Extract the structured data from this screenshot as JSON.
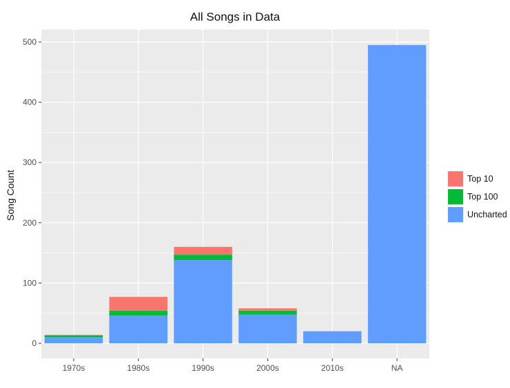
{
  "chart_data": {
    "type": "bar",
    "stacked": true,
    "title": "All Songs in Data",
    "xlabel": "",
    "ylabel": "Song Count",
    "ylim": [
      -5,
      520
    ],
    "yticks": [
      0,
      100,
      200,
      300,
      400,
      500
    ],
    "categories": [
      "1970s",
      "1980s",
      "1990s",
      "2000s",
      "2010s",
      "NA"
    ],
    "series": [
      {
        "name": "Uncharted",
        "color": "#619CFF",
        "values": [
          10,
          46,
          138,
          48,
          20,
          495
        ]
      },
      {
        "name": "Top 100",
        "color": "#00BA38",
        "values": [
          3,
          8,
          9,
          6,
          0,
          0
        ]
      },
      {
        "name": "Top 10",
        "color": "#F8766D",
        "values": [
          1,
          23,
          13,
          4,
          0,
          0
        ]
      }
    ],
    "legend_order": [
      "Top 10",
      "Top 100",
      "Uncharted"
    ],
    "legend_position": "right",
    "grid": true,
    "panel_background": "#EBEBEB",
    "grid_color": "#FFFFFF"
  }
}
